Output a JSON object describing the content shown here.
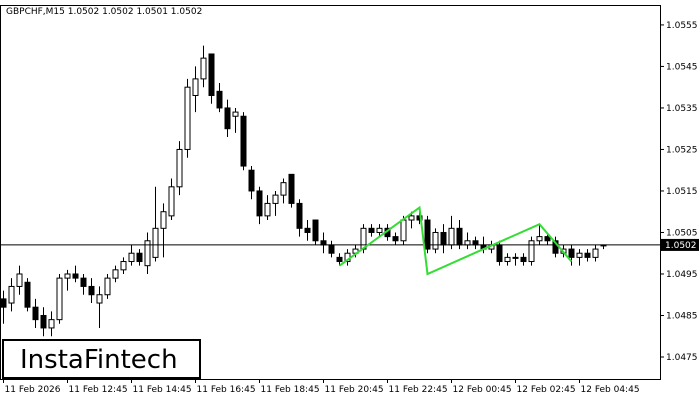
{
  "chart_data": {
    "type": "candlestick",
    "title": "GBPCHF,M15  1.0502 1.0502 1.0501 1.0502",
    "logo": "InstaFintech",
    "categories": [
      "11 Feb 2026",
      null,
      null,
      null,
      null,
      null,
      null,
      null,
      "11 Feb 12:45",
      null,
      null,
      null,
      null,
      null,
      null,
      null,
      "11 Feb 14:45",
      null,
      null,
      null,
      null,
      null,
      null,
      null,
      "11 Feb 16:45",
      null,
      null,
      null,
      null,
      null,
      null,
      null,
      "11 Feb 18:45",
      null,
      null,
      null,
      null,
      null,
      null,
      null,
      "11 Feb 20:45",
      null,
      null,
      null,
      null,
      null,
      null,
      null,
      "11 Feb 22:45",
      null,
      null,
      null,
      null,
      null,
      null,
      null,
      "12 Feb 00:45",
      null,
      null,
      null,
      null,
      null,
      null,
      null,
      "12 Feb 02:45",
      null,
      null,
      null,
      null,
      null,
      null,
      null,
      "12 Feb 04:45",
      null,
      null,
      null
    ],
    "open": [
      1.0489,
      1.0488,
      1.0492,
      1.0493,
      1.0487,
      1.0485,
      1.0482,
      1.0484,
      1.0494,
      1.0495,
      1.0494,
      1.0492,
      1.0488,
      1.049,
      1.0494,
      1.0496,
      1.0498,
      1.05,
      1.0497,
      1.0499,
      1.0506,
      1.0509,
      1.0516,
      1.0525,
      1.0538,
      1.0542,
      1.0548,
      1.0539,
      1.0535,
      1.0533,
      1.0533,
      1.052,
      1.0515,
      1.0509,
      1.0512,
      1.0514,
      1.0519,
      1.0512,
      1.0506,
      1.0508,
      1.0503,
      1.0502,
      1.0499,
      1.0498,
      1.05,
      1.0501,
      1.0506,
      1.0505,
      1.0506,
      1.0504,
      1.0503,
      1.0508,
      1.0509,
      1.0508,
      1.0501,
      1.0505,
      1.0502,
      1.0506,
      1.0502,
      1.0503,
      1.0502,
      1.0501,
      1.0502,
      1.0498,
      1.0499,
      1.0499,
      1.0498,
      1.0503,
      1.0504,
      1.0503,
      1.05,
      1.0501,
      1.0499,
      1.05,
      1.0499,
      1.0502
    ],
    "high": [
      1.0491,
      1.0494,
      1.0497,
      1.0494,
      1.0489,
      1.0487,
      1.0486,
      1.0495,
      1.0496,
      1.0497,
      1.0495,
      1.0494,
      1.0492,
      1.0495,
      1.0497,
      1.0499,
      1.0502,
      1.0501,
      1.0505,
      1.0516,
      1.0512,
      1.0518,
      1.0527,
      1.0542,
      1.0545,
      1.055,
      1.0548,
      1.0541,
      1.0537,
      1.0535,
      1.0534,
      1.0521,
      1.0516,
      1.0514,
      1.0515,
      1.0518,
      1.0519,
      1.0513,
      1.0508,
      1.0508,
      1.0505,
      1.0503,
      1.05,
      1.0501,
      1.0502,
      1.0507,
      1.0507,
      1.0507,
      1.0507,
      1.0505,
      1.0509,
      1.051,
      1.0511,
      1.0509,
      1.0506,
      1.0507,
      1.0509,
      1.0508,
      1.0505,
      1.0504,
      1.0504,
      1.0503,
      1.0503,
      1.05,
      1.05,
      1.05,
      1.0504,
      1.0507,
      1.0505,
      1.0504,
      1.0502,
      1.0502,
      1.0501,
      1.0501,
      1.0502,
      1.0502
    ],
    "low": [
      1.0483,
      1.0486,
      1.049,
      1.0486,
      1.0482,
      1.048,
      1.048,
      1.0483,
      1.0491,
      1.0493,
      1.049,
      1.0488,
      1.0482,
      1.0489,
      1.0493,
      1.0495,
      1.0497,
      1.0497,
      1.0495,
      1.0498,
      1.0499,
      1.0508,
      1.0514,
      1.0523,
      1.0534,
      1.054,
      1.0536,
      1.0534,
      1.0528,
      1.0529,
      1.052,
      1.0513,
      1.0507,
      1.0508,
      1.0509,
      1.0512,
      1.0511,
      1.0504,
      1.0503,
      1.0502,
      1.05,
      1.0499,
      1.0497,
      1.0497,
      1.0499,
      1.05,
      1.0504,
      1.0504,
      1.0503,
      1.0502,
      1.0502,
      1.0506,
      1.0507,
      1.05,
      1.05,
      1.05,
      1.0501,
      1.0501,
      1.0501,
      1.0501,
      1.05,
      1.05,
      1.0497,
      1.0497,
      1.0497,
      1.0497,
      1.0497,
      1.0502,
      1.0502,
      1.0499,
      1.0499,
      1.0497,
      1.0497,
      1.0498,
      1.0498,
      1.0501
    ],
    "close": [
      1.0487,
      1.0492,
      1.0495,
      1.0487,
      1.0484,
      1.0482,
      1.0484,
      1.0494,
      1.0495,
      1.0494,
      1.0492,
      1.049,
      1.049,
      1.0494,
      1.0496,
      1.0498,
      1.05,
      1.0498,
      1.0503,
      1.0506,
      1.051,
      1.0516,
      1.0525,
      1.054,
      1.0542,
      1.0547,
      1.0538,
      1.0535,
      1.053,
      1.0534,
      1.0521,
      1.0515,
      1.0509,
      1.0512,
      1.0514,
      1.0517,
      1.0512,
      1.0506,
      1.0505,
      1.0503,
      1.0502,
      1.05,
      1.0498,
      1.05,
      1.0501,
      1.0506,
      1.0505,
      1.0506,
      1.0504,
      1.0503,
      1.0508,
      1.0509,
      1.0508,
      1.0501,
      1.0505,
      1.0502,
      1.0506,
      1.0502,
      1.0503,
      1.0502,
      1.0501,
      1.0502,
      1.0498,
      1.0499,
      1.0499,
      1.0498,
      1.0503,
      1.0504,
      1.0503,
      1.05,
      1.0501,
      1.0499,
      1.05,
      1.0499,
      1.0501,
      1.0502
    ],
    "up_color": "#ffffff",
    "down_color": "#000000",
    "ylim": [
      1.04697,
      1.05598
    ],
    "yticks": [
      1.0475,
      1.0485,
      1.0495,
      1.0505,
      1.0515,
      1.0525,
      1.0535,
      1.0545,
      1.0555
    ],
    "last_price": 1.0502,
    "pattern": {
      "color": "#33dd33",
      "x": [
        42,
        52,
        53,
        67,
        71
      ],
      "y": [
        1.0497,
        1.0511,
        1.0495,
        1.0507,
        1.0498
      ]
    }
  }
}
